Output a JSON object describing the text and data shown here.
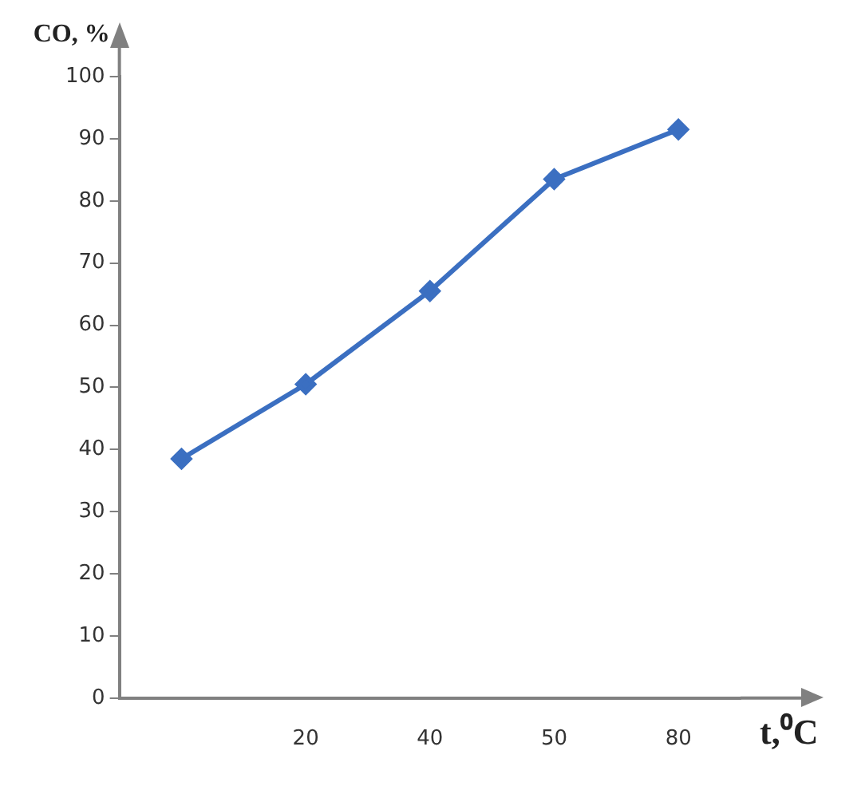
{
  "chart_data": {
    "type": "line",
    "xlabel": "t,⁰C",
    "ylabel": "CO, %",
    "categories": [
      null,
      "20",
      "40",
      "50",
      "80"
    ],
    "series": [
      {
        "color": "#3b6fc1",
        "values": [
          38.5,
          50.5,
          65.5,
          83.5,
          91.5
        ]
      }
    ],
    "ylim": [
      0,
      100
    ],
    "yticks": [
      0,
      10,
      20,
      30,
      40,
      50,
      60,
      70,
      80,
      90,
      100
    ],
    "grid": false,
    "legend": false,
    "marker": "diamond",
    "line_style": "solid"
  }
}
